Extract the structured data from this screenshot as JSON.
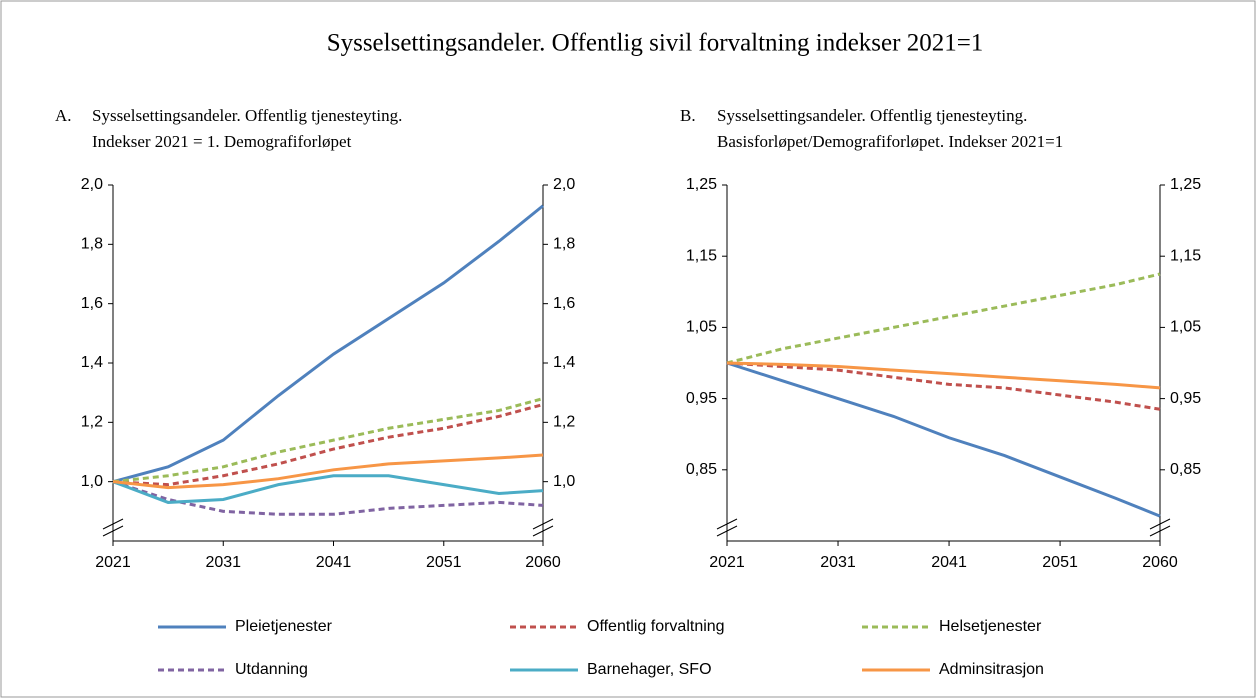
{
  "title": "Sysselsettingsandeler. Offentlig  sivil forvaltning  indekser 2021=1",
  "chart_data": [
    {
      "type": "line",
      "label": "A.",
      "title": [
        "Sysselsettingsandeler.  Offentlig  tjenesteyting.",
        "Indekser 2021  = 1. Demografiforløpet"
      ],
      "x": [
        2021,
        2026,
        2031,
        2036,
        2041,
        2046,
        2051,
        2056,
        2060
      ],
      "xlim": [
        2021,
        2060
      ],
      "xticks": [
        2021,
        2031,
        2041,
        2051,
        2060
      ],
      "ylim": [
        0.8,
        2.0
      ],
      "yticks": [
        {
          "value": 1.0,
          "label": "1,0"
        },
        {
          "value": 1.2,
          "label": "1,2"
        },
        {
          "value": 1.4,
          "label": "1,4"
        },
        {
          "value": 1.6,
          "label": "1,6"
        },
        {
          "value": 1.8,
          "label": "1,8"
        },
        {
          "value": 2.0,
          "label": "2,0"
        }
      ],
      "series": [
        {
          "name": "Pleietjenester",
          "color": "#4f81bd",
          "dash": false,
          "values": [
            1.0,
            1.05,
            1.14,
            1.29,
            1.43,
            1.55,
            1.67,
            1.81,
            1.93
          ]
        },
        {
          "name": "Offentlig forvaltning",
          "color": "#c0504d",
          "dash": true,
          "values": [
            1.0,
            0.99,
            1.02,
            1.06,
            1.11,
            1.15,
            1.18,
            1.22,
            1.26
          ]
        },
        {
          "name": "Helsetjenester",
          "color": "#9bbb59",
          "dash": true,
          "values": [
            1.0,
            1.02,
            1.05,
            1.1,
            1.14,
            1.18,
            1.21,
            1.24,
            1.28
          ]
        },
        {
          "name": "Utdanning",
          "color": "#8064a2",
          "dash": true,
          "values": [
            1.0,
            0.94,
            0.9,
            0.89,
            0.89,
            0.91,
            0.92,
            0.93,
            0.92
          ]
        },
        {
          "name": "Barnehager, SFO",
          "color": "#4bacc6",
          "dash": false,
          "values": [
            1.0,
            0.93,
            0.94,
            0.99,
            1.02,
            1.02,
            0.99,
            0.96,
            0.97
          ]
        },
        {
          "name": "Adminsitrasjon",
          "color": "#f79646",
          "dash": false,
          "values": [
            1.0,
            0.98,
            0.99,
            1.01,
            1.04,
            1.06,
            1.07,
            1.08,
            1.09
          ]
        }
      ]
    },
    {
      "type": "line",
      "label": "B.",
      "title": [
        "Sysselsettingsandeler.  Offentlig  tjenesteyting.",
        "Basisforløpet/Demografiforløpet.  Indekser 2021=1"
      ],
      "x": [
        2021,
        2026,
        2031,
        2036,
        2041,
        2046,
        2051,
        2056,
        2060
      ],
      "xlim": [
        2021,
        2060
      ],
      "xticks": [
        2021,
        2031,
        2041,
        2051,
        2060
      ],
      "ylim": [
        0.75,
        1.25
      ],
      "yticks": [
        {
          "value": 0.85,
          "label": "0,85"
        },
        {
          "value": 0.95,
          "label": "0,95"
        },
        {
          "value": 1.05,
          "label": "1,05"
        },
        {
          "value": 1.15,
          "label": "1,15"
        },
        {
          "value": 1.25,
          "label": "1,25"
        }
      ],
      "series": [
        {
          "color": "#4f81bd",
          "dash": false,
          "values": [
            1.0,
            0.975,
            0.95,
            0.925,
            0.895,
            0.87,
            0.84,
            0.81,
            0.785
          ]
        },
        {
          "color": "#c0504d",
          "dash": true,
          "values": [
            1.0,
            0.995,
            0.99,
            0.98,
            0.97,
            0.965,
            0.955,
            0.945,
            0.935
          ]
        },
        {
          "color": "#9bbb59",
          "dash": true,
          "values": [
            1.0,
            1.02,
            1.035,
            1.05,
            1.065,
            1.08,
            1.095,
            1.11,
            1.125
          ]
        },
        {
          "color": "#f79646",
          "dash": false,
          "values": [
            1.0,
            0.998,
            0.995,
            0.99,
            0.985,
            0.98,
            0.975,
            0.97,
            0.965
          ]
        }
      ]
    }
  ]
}
